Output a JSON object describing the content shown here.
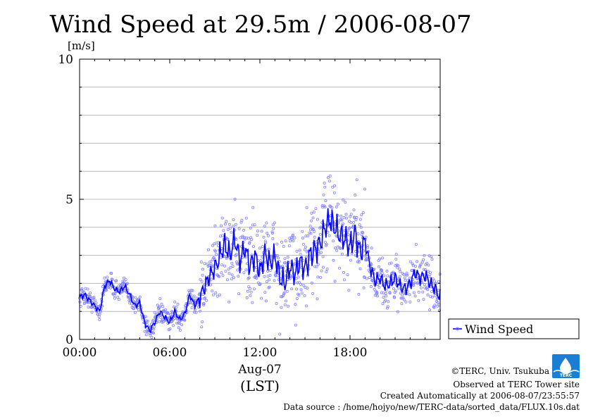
{
  "chart_data": {
    "type": "scatter",
    "title": "Wind Speed at 29.5m / 2006-08-07",
    "ylabel": "[m/s]",
    "xlabel_date": "Aug-07",
    "xlabel_unit": "(LST)",
    "ylim": [
      0,
      10
    ],
    "xlim": [
      "00:00",
      "24:00"
    ],
    "y_ticks": [
      0,
      5,
      10
    ],
    "x_ticks": [
      "00:00",
      "06:00",
      "12:00",
      "18:00"
    ],
    "grid": true,
    "legend_position": "bottom-right outside plot",
    "series": [
      {
        "name": "Wind Speed",
        "line_color": "#0000ff",
        "point_color": "#8080ff",
        "mean_points": [
          {
            "t": "00:00",
            "v": 1.5
          },
          {
            "t": "00:20",
            "v": 1.6
          },
          {
            "t": "00:40",
            "v": 1.4
          },
          {
            "t": "01:00",
            "v": 1.2
          },
          {
            "t": "01:20",
            "v": 1.0
          },
          {
            "t": "01:40",
            "v": 1.9
          },
          {
            "t": "02:00",
            "v": 2.1
          },
          {
            "t": "02:20",
            "v": 1.8
          },
          {
            "t": "02:40",
            "v": 1.7
          },
          {
            "t": "03:00",
            "v": 1.9
          },
          {
            "t": "03:20",
            "v": 1.6
          },
          {
            "t": "03:40",
            "v": 1.2
          },
          {
            "t": "04:00",
            "v": 1.3
          },
          {
            "t": "04:20",
            "v": 0.6
          },
          {
            "t": "04:40",
            "v": 0.3
          },
          {
            "t": "05:00",
            "v": 0.6
          },
          {
            "t": "05:20",
            "v": 1.0
          },
          {
            "t": "05:40",
            "v": 0.8
          },
          {
            "t": "06:00",
            "v": 0.6
          },
          {
            "t": "06:20",
            "v": 1.0
          },
          {
            "t": "06:40",
            "v": 0.7
          },
          {
            "t": "07:00",
            "v": 0.9
          },
          {
            "t": "07:20",
            "v": 1.6
          },
          {
            "t": "07:40",
            "v": 1.2
          },
          {
            "t": "08:00",
            "v": 1.5
          },
          {
            "t": "08:20",
            "v": 1.9
          },
          {
            "t": "08:40",
            "v": 2.3
          },
          {
            "t": "09:00",
            "v": 2.5
          },
          {
            "t": "09:20",
            "v": 3.0
          },
          {
            "t": "09:40",
            "v": 3.4
          },
          {
            "t": "10:00",
            "v": 3.0
          },
          {
            "t": "10:20",
            "v": 3.6
          },
          {
            "t": "10:40",
            "v": 2.8
          },
          {
            "t": "11:00",
            "v": 3.3
          },
          {
            "t": "11:20",
            "v": 2.6
          },
          {
            "t": "11:40",
            "v": 3.0
          },
          {
            "t": "12:00",
            "v": 2.4
          },
          {
            "t": "12:20",
            "v": 3.1
          },
          {
            "t": "12:40",
            "v": 2.7
          },
          {
            "t": "13:00",
            "v": 3.0
          },
          {
            "t": "13:20",
            "v": 2.2
          },
          {
            "t": "13:40",
            "v": 2.0
          },
          {
            "t": "14:00",
            "v": 2.6
          },
          {
            "t": "14:20",
            "v": 2.3
          },
          {
            "t": "14:40",
            "v": 2.8
          },
          {
            "t": "15:00",
            "v": 2.5
          },
          {
            "t": "15:20",
            "v": 3.0
          },
          {
            "t": "15:40",
            "v": 3.2
          },
          {
            "t": "16:00",
            "v": 3.4
          },
          {
            "t": "16:20",
            "v": 4.0
          },
          {
            "t": "16:40",
            "v": 4.3
          },
          {
            "t": "17:00",
            "v": 4.0
          },
          {
            "t": "17:20",
            "v": 3.7
          },
          {
            "t": "17:40",
            "v": 3.6
          },
          {
            "t": "18:00",
            "v": 3.3
          },
          {
            "t": "18:20",
            "v": 3.8
          },
          {
            "t": "18:40",
            "v": 3.1
          },
          {
            "t": "19:00",
            "v": 3.5
          },
          {
            "t": "19:20",
            "v": 2.6
          },
          {
            "t": "19:40",
            "v": 2.1
          },
          {
            "t": "20:00",
            "v": 2.2
          },
          {
            "t": "20:20",
            "v": 1.9
          },
          {
            "t": "20:40",
            "v": 2.0
          },
          {
            "t": "21:00",
            "v": 2.2
          },
          {
            "t": "21:20",
            "v": 1.9
          },
          {
            "t": "21:40",
            "v": 1.8
          },
          {
            "t": "22:00",
            "v": 2.0
          },
          {
            "t": "22:20",
            "v": 2.4
          },
          {
            "t": "22:40",
            "v": 2.2
          },
          {
            "t": "23:00",
            "v": 2.3
          },
          {
            "t": "23:20",
            "v": 2.0
          },
          {
            "t": "23:40",
            "v": 1.8
          },
          {
            "t": "24:00",
            "v": 1.5
          }
        ]
      }
    ]
  },
  "credits": {
    "copyright": "©TERC, Univ. Tsukuba",
    "observed": "Observed at TERC Tower site",
    "created": "Created Automatically at 2006-08-07/23:55:57",
    "source": "Data source : /home/hojyo/new/TERC-data/sorted_data/FLUX.10s.dat"
  },
  "logo": {
    "text": "TERC",
    "color": "#1a7fd4",
    "icon": "terc-logo-icon"
  }
}
